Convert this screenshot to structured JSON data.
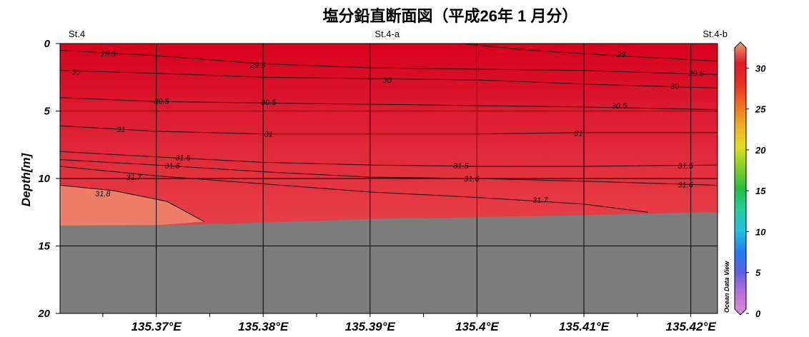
{
  "title": "塩分鉛直断面図（平成26年 1 月分）",
  "chart_data": {
    "type": "heatmap",
    "variable": "Salinity",
    "ylabel": "Depth[m]",
    "xlim": [
      135.361,
      135.4225
    ],
    "ylim": [
      0,
      20
    ],
    "y_inverted": true,
    "x_ticks": [
      "135.37°E",
      "135.38°E",
      "135.39°E",
      "135.4°E",
      "135.41°E",
      "135.42°E"
    ],
    "x_tick_values": [
      135.37,
      135.38,
      135.39,
      135.4,
      135.41,
      135.42
    ],
    "y_ticks": [
      "0",
      "5",
      "10",
      "15",
      "20"
    ],
    "y_tick_values": [
      0,
      5,
      10,
      15,
      20
    ],
    "stations": [
      {
        "name": "St.4",
        "x": 135.361
      },
      {
        "name": "St.4-a",
        "x": 135.3916
      },
      {
        "name": "St.4-b",
        "x": 135.4225
      }
    ],
    "colorbar": {
      "range": [
        0,
        33
      ],
      "ticks": [
        "0",
        "5",
        "10",
        "15",
        "20",
        "25",
        "30"
      ],
      "tick_values": [
        0,
        5,
        10,
        15,
        20,
        25,
        30
      ],
      "colors": [
        "#d98ad8",
        "#c070d8",
        "#6060e8",
        "#2080f0",
        "#20c0e0",
        "#20d0a0",
        "#20c040",
        "#80d020",
        "#e0e020",
        "#f0b020",
        "#f07020",
        "#e83020",
        "#e01a2a",
        "#f0a070"
      ]
    },
    "seafloor_depth": [
      {
        "x": 135.361,
        "depth": 13.5
      },
      {
        "x": 135.375,
        "depth": 13.4
      },
      {
        "x": 135.39,
        "depth": 13.0
      },
      {
        "x": 135.405,
        "depth": 12.8
      },
      {
        "x": 135.4225,
        "depth": 12.5
      }
    ],
    "contours": [
      {
        "level": "29",
        "points": [
          [
            135.3985,
            0
          ],
          [
            135.405,
            0.5
          ],
          [
            135.413,
            0.9
          ],
          [
            135.4225,
            1.3
          ]
        ],
        "labels": [
          [
            135.4135,
            0.8
          ]
        ]
      },
      {
        "level": "29.5",
        "points": [
          [
            135.361,
            0.5
          ],
          [
            135.37,
            0.9
          ],
          [
            135.38,
            1.5
          ],
          [
            135.39,
            1.8
          ],
          [
            135.4,
            1.9
          ],
          [
            135.41,
            2.0
          ],
          [
            135.4225,
            2.3
          ]
        ],
        "labels": [
          [
            135.3655,
            0.75
          ],
          [
            135.3795,
            1.6
          ],
          [
            135.4205,
            2.2
          ]
        ]
      },
      {
        "level": "30",
        "points": [
          [
            135.361,
            2.0
          ],
          [
            135.37,
            2.2
          ],
          [
            135.38,
            2.5
          ],
          [
            135.39,
            2.6
          ],
          [
            135.4,
            2.7
          ],
          [
            135.41,
            3.0
          ],
          [
            135.4225,
            3.3
          ]
        ],
        "labels": [
          [
            135.3625,
            2.1
          ],
          [
            135.3916,
            2.7
          ],
          [
            135.4185,
            3.15
          ]
        ]
      },
      {
        "level": "30.5",
        "points": [
          [
            135.361,
            4.0
          ],
          [
            135.37,
            4.3
          ],
          [
            135.38,
            4.4
          ],
          [
            135.39,
            4.5
          ],
          [
            135.4,
            4.6
          ],
          [
            135.41,
            4.7
          ],
          [
            135.4225,
            4.9
          ]
        ],
        "labels": [
          [
            135.3705,
            4.25
          ],
          [
            135.3805,
            4.35
          ],
          [
            135.4133,
            4.6
          ]
        ]
      },
      {
        "level": "31",
        "points": [
          [
            135.361,
            6.1
          ],
          [
            135.37,
            6.5
          ],
          [
            135.38,
            6.7
          ],
          [
            135.39,
            6.7
          ],
          [
            135.4,
            6.7
          ],
          [
            135.41,
            6.6
          ],
          [
            135.4225,
            6.6
          ]
        ],
        "labels": [
          [
            135.3667,
            6.35
          ],
          [
            135.3805,
            6.7
          ],
          [
            135.4095,
            6.65
          ]
        ]
      },
      {
        "level": "31.5",
        "points": [
          [
            135.361,
            8.0
          ],
          [
            135.37,
            8.4
          ],
          [
            135.38,
            8.8
          ],
          [
            135.39,
            9.0
          ],
          [
            135.4,
            9.1
          ],
          [
            135.41,
            9.1
          ],
          [
            135.4225,
            9.0
          ]
        ],
        "labels": [
          [
            135.3725,
            8.45
          ],
          [
            135.3985,
            9.05
          ],
          [
            135.4195,
            9.05
          ]
        ]
      },
      {
        "level": "31.6",
        "points": [
          [
            135.361,
            8.6
          ],
          [
            135.37,
            9.0
          ],
          [
            135.38,
            9.5
          ],
          [
            135.39,
            9.9
          ],
          [
            135.4,
            10.0
          ],
          [
            135.41,
            10.2
          ],
          [
            135.4225,
            10.5
          ]
        ],
        "labels": [
          [
            135.3715,
            9.05
          ],
          [
            135.3995,
            10.0
          ],
          [
            135.4195,
            10.45
          ]
        ]
      },
      {
        "level": "31.7",
        "points": [
          [
            135.361,
            9.1
          ],
          [
            135.37,
            9.8
          ],
          [
            135.38,
            10.4
          ],
          [
            135.39,
            11.0
          ],
          [
            135.4,
            11.4
          ],
          [
            135.41,
            11.9
          ],
          [
            135.416,
            12.5
          ]
        ],
        "labels": [
          [
            135.3679,
            9.9
          ],
          [
            135.4059,
            11.6
          ]
        ]
      },
      {
        "level": "31.8",
        "points": [
          [
            135.361,
            10.5
          ],
          [
            135.366,
            10.9
          ],
          [
            135.371,
            11.7
          ],
          [
            135.3745,
            13.2
          ]
        ],
        "labels": [
          [
            135.365,
            11.1
          ]
        ]
      }
    ],
    "colorbar_label": "Ocean Data View"
  }
}
